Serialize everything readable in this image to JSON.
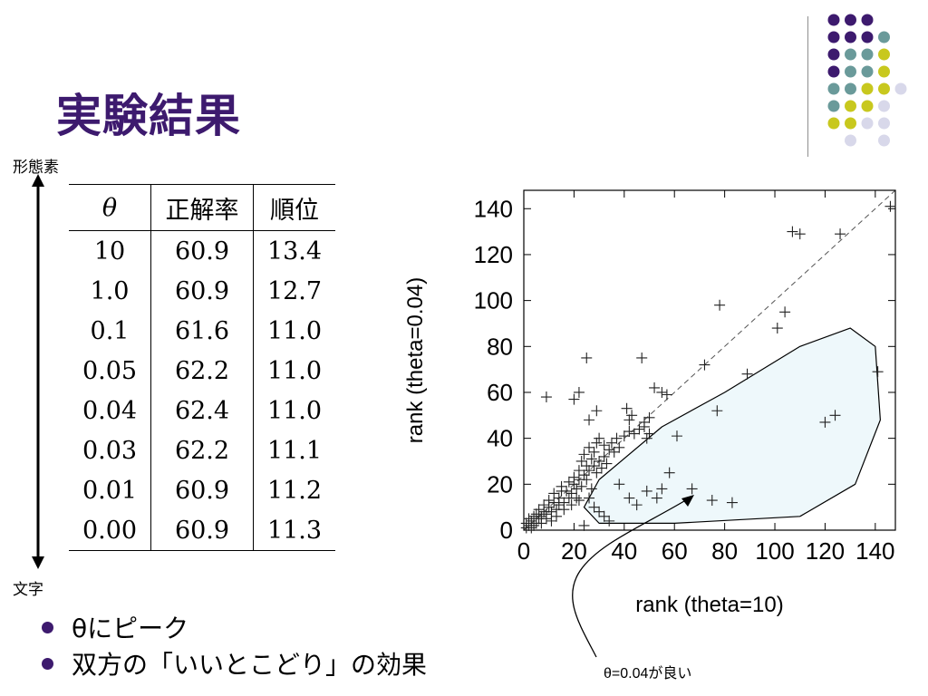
{
  "slide": {
    "title": "実験結果",
    "axis_top_label": "形態素",
    "axis_bottom_label": "文字"
  },
  "decoration": {
    "dot_colors": {
      "purple": "#3d1a6e",
      "teal": "#6a9a9a",
      "yellow": "#c8c81e",
      "lavender": "#d8d8ea"
    },
    "title_color": "#3d1a6e"
  },
  "table": {
    "headers": [
      "θ",
      "正解率",
      "順位"
    ],
    "rows": [
      [
        "10",
        "60.9",
        "13.4"
      ],
      [
        "1.0",
        "60.9",
        "12.7"
      ],
      [
        "0.1",
        "61.6",
        "11.0"
      ],
      [
        "0.05",
        "62.2",
        "11.0"
      ],
      [
        "0.04",
        "62.4",
        "11.0"
      ],
      [
        "0.03",
        "62.2",
        "11.1"
      ],
      [
        "0.01",
        "60.9",
        "11.2"
      ],
      [
        "0.00",
        "60.9",
        "11.3"
      ]
    ]
  },
  "chart_data": {
    "type": "scatter",
    "xlabel": "rank (theta=10)",
    "ylabel": "rank (theta=0.04)",
    "xlim": [
      0,
      148
    ],
    "ylim": [
      0,
      148
    ],
    "xticks": [
      "0",
      "20",
      "40",
      "60",
      "80",
      "100",
      "120",
      "140"
    ],
    "yticks": [
      "0",
      "20",
      "40",
      "60",
      "80",
      "100",
      "120",
      "140"
    ],
    "marker": "plus",
    "diagonal": "dashed y=x",
    "highlight_region": "shaded region below diagonal",
    "points": [
      [
        1,
        1
      ],
      [
        1,
        3
      ],
      [
        2,
        2
      ],
      [
        2,
        5
      ],
      [
        3,
        1
      ],
      [
        3,
        4
      ],
      [
        4,
        6
      ],
      [
        4,
        2
      ],
      [
        5,
        3
      ],
      [
        5,
        7
      ],
      [
        6,
        5
      ],
      [
        6,
        9
      ],
      [
        7,
        6
      ],
      [
        7,
        3
      ],
      [
        8,
        8
      ],
      [
        8,
        11
      ],
      [
        9,
        5
      ],
      [
        9,
        7
      ],
      [
        10,
        10
      ],
      [
        10,
        13
      ],
      [
        11,
        8
      ],
      [
        11,
        4
      ],
      [
        12,
        12
      ],
      [
        12,
        16
      ],
      [
        13,
        9
      ],
      [
        13,
        6
      ],
      [
        14,
        14
      ],
      [
        14,
        11
      ],
      [
        15,
        17
      ],
      [
        15,
        19
      ],
      [
        16,
        12
      ],
      [
        16,
        9
      ],
      [
        17,
        17
      ],
      [
        18,
        14
      ],
      [
        18,
        21
      ],
      [
        19,
        16
      ],
      [
        19,
        11
      ],
      [
        20,
        20
      ],
      [
        20,
        23
      ],
      [
        21,
        18
      ],
      [
        21,
        14
      ],
      [
        22,
        22
      ],
      [
        22,
        26
      ],
      [
        23,
        19
      ],
      [
        23,
        30
      ],
      [
        24,
        24
      ],
      [
        24,
        33
      ],
      [
        25,
        22
      ],
      [
        25,
        28
      ],
      [
        26,
        26
      ],
      [
        26,
        36
      ],
      [
        27,
        31
      ],
      [
        27,
        18
      ],
      [
        28,
        28
      ],
      [
        28,
        34
      ],
      [
        29,
        25
      ],
      [
        29,
        38
      ],
      [
        30,
        30
      ],
      [
        30,
        40
      ],
      [
        31,
        27
      ],
      [
        32,
        32
      ],
      [
        32,
        37
      ],
      [
        33,
        29
      ],
      [
        34,
        35
      ],
      [
        35,
        38
      ],
      [
        36,
        34
      ],
      [
        37,
        40
      ],
      [
        38,
        36
      ],
      [
        40,
        41
      ],
      [
        42,
        43
      ],
      [
        44,
        42
      ],
      [
        46,
        44
      ],
      [
        48,
        47
      ],
      [
        50,
        49
      ],
      [
        9,
        58
      ],
      [
        20,
        57
      ],
      [
        22,
        60
      ],
      [
        25,
        75
      ],
      [
        26,
        48
      ],
      [
        29,
        52
      ],
      [
        41,
        53
      ],
      [
        43,
        50
      ],
      [
        42,
        48
      ],
      [
        47,
        75
      ],
      [
        48,
        45
      ],
      [
        49,
        40
      ],
      [
        50,
        42
      ],
      [
        52,
        62
      ],
      [
        55,
        60
      ],
      [
        57,
        59
      ],
      [
        22,
        13
      ],
      [
        24,
        2
      ],
      [
        26,
        14
      ],
      [
        28,
        10
      ],
      [
        30,
        8
      ],
      [
        32,
        6
      ],
      [
        34,
        4
      ],
      [
        38,
        20
      ],
      [
        42,
        14
      ],
      [
        45,
        11
      ],
      [
        49,
        17
      ],
      [
        53,
        14
      ],
      [
        55,
        18
      ],
      [
        58,
        25
      ],
      [
        61,
        41
      ],
      [
        67,
        18
      ],
      [
        72,
        72
      ],
      [
        75,
        13
      ],
      [
        77,
        52
      ],
      [
        78,
        98
      ],
      [
        83,
        12
      ],
      [
        89,
        68
      ],
      [
        101,
        88
      ],
      [
        104,
        95
      ],
      [
        107,
        130
      ],
      [
        110,
        129
      ],
      [
        120,
        47
      ],
      [
        124,
        50
      ],
      [
        126,
        129
      ],
      [
        141,
        69
      ],
      [
        146,
        141
      ]
    ]
  },
  "annotation": {
    "note": "θ=0.04が良い"
  },
  "bullets": [
    "θにピーク",
    "双方の「いいとこどり」の効果"
  ]
}
